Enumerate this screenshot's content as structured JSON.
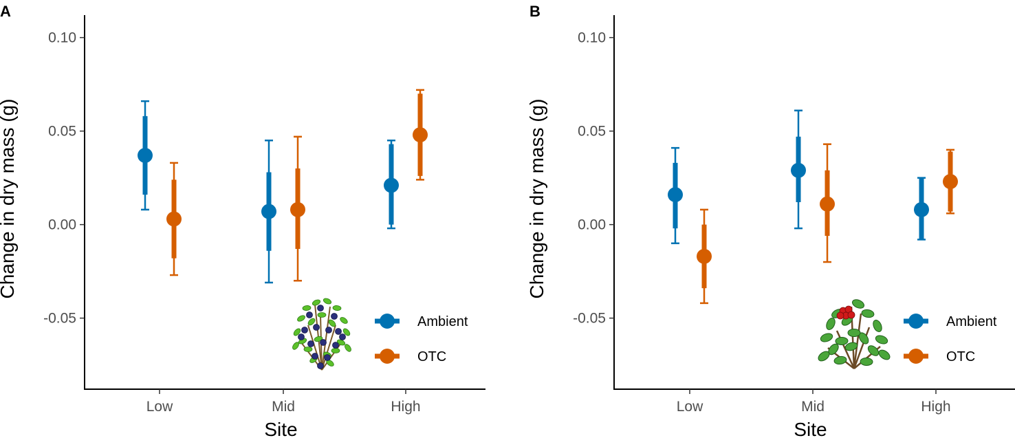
{
  "chart_data": [
    {
      "panel": "A",
      "type": "scatter",
      "subtype": "point-with-error-bars",
      "xlabel": "Site",
      "ylabel": "Change in dry mass (g)",
      "categories": [
        "Low",
        "Mid",
        "High"
      ],
      "ylim": [
        -0.088,
        0.112
      ],
      "yticks": [
        -0.05,
        0.0,
        0.05,
        0.1
      ],
      "ytick_labels": [
        "-0.05",
        "0.00",
        "0.05",
        "0.10"
      ],
      "legend_position": "bottom-right",
      "illustration": "blueberry-plant",
      "series": [
        {
          "name": "Ambient",
          "color": "#0072B2",
          "means": [
            0.037,
            0.007,
            0.021
          ],
          "inner_interval": [
            [
              0.016,
              0.058
            ],
            [
              -0.014,
              0.028
            ],
            [
              0.0,
              0.043
            ]
          ],
          "outer_interval": [
            [
              0.008,
              0.066
            ],
            [
              -0.031,
              0.045
            ],
            [
              -0.002,
              0.045
            ]
          ]
        },
        {
          "name": "OTC",
          "color": "#D55E00",
          "means": [
            0.003,
            0.008,
            0.048
          ],
          "inner_interval": [
            [
              -0.018,
              0.024
            ],
            [
              -0.013,
              0.03
            ],
            [
              0.026,
              0.07
            ]
          ],
          "outer_interval": [
            [
              -0.027,
              0.033
            ],
            [
              -0.03,
              0.047
            ],
            [
              0.024,
              0.072
            ]
          ]
        }
      ]
    },
    {
      "panel": "B",
      "type": "scatter",
      "subtype": "point-with-error-bars",
      "xlabel": "Site",
      "ylabel": "Change in dry mass (g)",
      "categories": [
        "Low",
        "Mid",
        "High"
      ],
      "ylim": [
        -0.088,
        0.112
      ],
      "yticks": [
        -0.05,
        0.0,
        0.05,
        0.1
      ],
      "ytick_labels": [
        "-0.05",
        "0.00",
        "0.05",
        "0.10"
      ],
      "legend_position": "bottom-right",
      "illustration": "lingonberry-plant",
      "series": [
        {
          "name": "Ambient",
          "color": "#0072B2",
          "means": [
            0.016,
            0.029,
            0.008
          ],
          "inner_interval": [
            [
              -0.002,
              0.033
            ],
            [
              0.012,
              0.047
            ],
            [
              -0.008,
              0.025
            ]
          ],
          "outer_interval": [
            [
              -0.01,
              0.041
            ],
            [
              -0.002,
              0.061
            ],
            [
              -0.008,
              0.025
            ]
          ]
        },
        {
          "name": "OTC",
          "color": "#D55E00",
          "means": [
            -0.017,
            0.011,
            0.023
          ],
          "inner_interval": [
            [
              -0.034,
              0.0
            ],
            [
              -0.006,
              0.029
            ],
            [
              0.007,
              0.039
            ]
          ],
          "outer_interval": [
            [
              -0.042,
              0.008
            ],
            [
              -0.02,
              0.043
            ],
            [
              0.006,
              0.04
            ]
          ]
        }
      ]
    }
  ]
}
